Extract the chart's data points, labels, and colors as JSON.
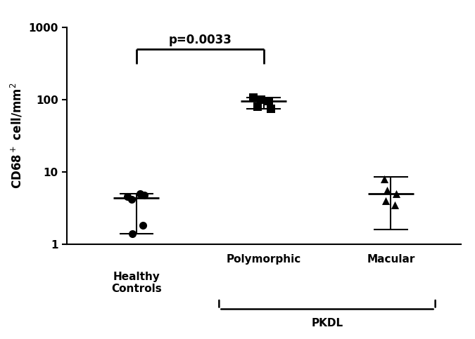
{
  "healthy_controls": [
    4.5,
    5.0,
    4.2,
    4.8,
    1.4,
    1.8
  ],
  "healthy_median": 4.3,
  "healthy_iqr_low": 1.4,
  "healthy_iqr_high": 5.0,
  "polymorphic": [
    105,
    100,
    95,
    80,
    75
  ],
  "polymorphic_median": 95,
  "polymorphic_iqr_low": 75,
  "polymorphic_iqr_high": 107,
  "macular": [
    8.0,
    5.5,
    5.0,
    4.0,
    3.5
  ],
  "macular_median": 5.0,
  "macular_iqr_low": 1.6,
  "macular_iqr_high": 8.5,
  "x_positions": [
    1,
    2,
    3
  ],
  "ylabel": "CD68$^+$ cell/mm$^2$",
  "pkdl_label": "PKDL",
  "pvalue_text": "p=0.0033",
  "background_color": "#ffffff",
  "marker_color": "#000000",
  "bar_color": "#000000",
  "ylim_low": 1,
  "ylim_high": 1000,
  "scatter_jitter_healthy": [
    -0.07,
    0.03,
    -0.04,
    0.06,
    -0.03,
    0.05
  ],
  "scatter_jitter_poly": [
    -0.08,
    -0.02,
    0.04,
    -0.05,
    0.06
  ],
  "scatter_jitter_mac": [
    -0.05,
    -0.03,
    0.04,
    -0.04,
    0.03
  ]
}
